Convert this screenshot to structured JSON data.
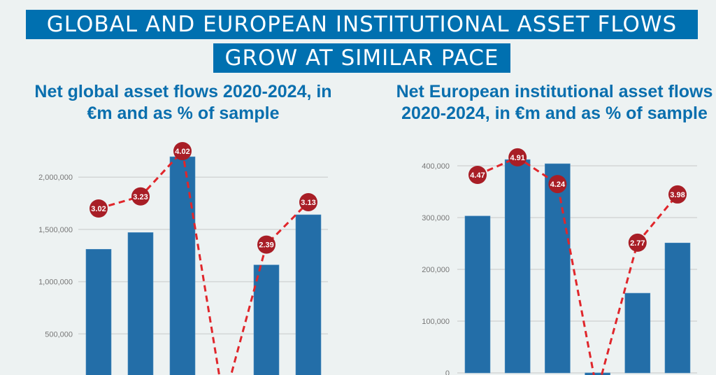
{
  "title": {
    "line1": "GLOBAL AND EUROPEAN INSTITUTIONAL ASSET FLOWS",
    "line2": "GROW AT SIMILAR PACE"
  },
  "colors": {
    "bar": "#236ea8",
    "line": "#e0262b",
    "marker": "#a81e26",
    "banner": "#0070b0",
    "subtitle": "#0a6fae",
    "background": "#edf2f2",
    "grid": "#d3d6d6"
  },
  "chart_data": [
    {
      "type": "bar+line",
      "title": "Net global asset flows 2020-2024, in €m and as % of sample",
      "title_lines": [
        "Net global asset flows 2020-2024, in",
        "€m and as % of sample"
      ],
      "yticks": [
        500000,
        1000000,
        1500000,
        2000000
      ],
      "ytick_labels": [
        "500,000",
        "1,000,000",
        "1,500,000",
        "2,000,000"
      ],
      "bars": [
        1310000,
        1470000,
        2195000,
        null,
        1160000,
        1640000
      ],
      "line_labels": [
        "3.02",
        "3.23",
        "4.02",
        null,
        "2.39",
        "3.13"
      ],
      "line_values": [
        3.02,
        3.23,
        4.02,
        null,
        2.39,
        3.13
      ],
      "grid": true
    },
    {
      "type": "bar+line",
      "title": "Net European institutional asset flows 2020-2024, in €m and as % of sample",
      "title_lines": [
        "Net European institutional asset flows",
        "2020-2024, in €m and as % of sample"
      ],
      "yticks": [
        0,
        100000,
        200000,
        300000,
        400000
      ],
      "ytick_labels": [
        "0",
        "100,000",
        "200,000",
        "300,000",
        "400,000"
      ],
      "bars": [
        303000,
        412000,
        404000,
        -3000,
        154000,
        251000
      ],
      "line_labels": [
        "4.47",
        "4.91",
        "4.24",
        null,
        "2.77",
        "3.98"
      ],
      "line_values": [
        4.47,
        4.91,
        4.24,
        null,
        2.77,
        3.98
      ],
      "grid": true
    }
  ]
}
